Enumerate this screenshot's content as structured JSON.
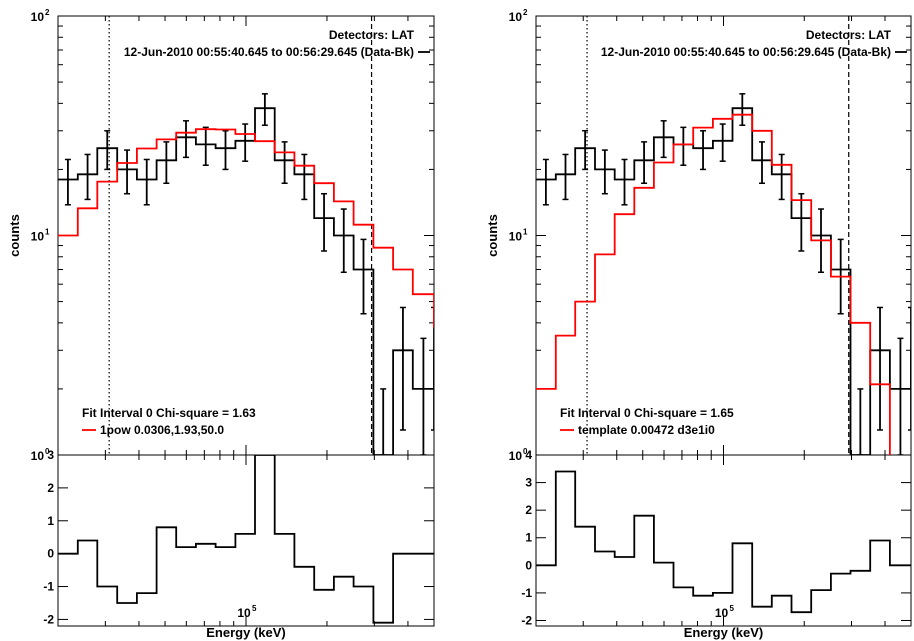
{
  "chart_data": [
    {
      "type": "line",
      "detectors": "Detectors: LAT",
      "interval": "12-Jun-2010 00:55:40.645 to 00:56:29.645 (Data-Bk)",
      "ylabel": "counts",
      "xlabel": "Energy (keV)",
      "x_tick": "10",
      "x_tick_exp": "5",
      "y_ticks": [
        {
          "base": "10",
          "exp": "2"
        },
        {
          "base": "10",
          "exp": "1"
        },
        {
          "base": "10",
          "exp": "0"
        }
      ],
      "fit_text": "Fit Interval 0   Chi-square = 1.63",
      "model_text": "1pow 0.0306,1.93,50.0",
      "colors": {
        "data": "#000000",
        "model": "#ff0000"
      },
      "log_x": true,
      "log_y": true,
      "xlim": [
        20000,
        500000
      ],
      "ylim": [
        1,
        100
      ],
      "x_tick_value": 100000,
      "dotted_line_x": 31000,
      "dashed_line_x": 293000,
      "edges": [
        20000,
        23700,
        28000,
        33200,
        39300,
        46500,
        55000,
        65100,
        77100,
        91300,
        108000,
        127900,
        151400,
        179300,
        212200,
        251300,
        297500,
        352200,
        417000,
        500000
      ],
      "data_counts": [
        18,
        19,
        25,
        20,
        18,
        22,
        28,
        26,
        25,
        27,
        38,
        22,
        19,
        12,
        10,
        7,
        1,
        3,
        2,
        3
      ],
      "data_errors": [
        4.2,
        4.4,
        5.0,
        4.5,
        4.2,
        4.7,
        5.3,
        5.1,
        5.0,
        5.2,
        6.2,
        4.7,
        4.4,
        3.5,
        3.2,
        2.6,
        1.0,
        1.7,
        1.4,
        1.7
      ],
      "model_counts": [
        10,
        13.3,
        17.6,
        21.4,
        24.9,
        27.4,
        29.4,
        30.5,
        30.4,
        29,
        26.9,
        23.9,
        20.8,
        17.3,
        14.3,
        11.2,
        8.8,
        7.0,
        5.4,
        4.2,
        3.8
      ],
      "resid_ylim": [
        -2.2,
        3.0
      ],
      "resid_ticks": [
        3,
        2,
        1,
        0,
        -1,
        -2
      ],
      "resid_values": [
        0.0,
        0.4,
        -1.0,
        -1.5,
        -1.2,
        0.8,
        0.2,
        0.3,
        0.2,
        0.6,
        3.0,
        0.6,
        -0.4,
        -1.1,
        -0.7,
        -1.0,
        -2.1,
        0.0,
        0.0
      ]
    },
    {
      "type": "line",
      "detectors": "Detectors: LAT",
      "interval": "12-Jun-2010 00:55:40.645 to 00:56:29.645 (Data-Bk)",
      "ylabel": "counts",
      "xlabel": "Energy (keV)",
      "x_tick": "10",
      "x_tick_exp": "5",
      "y_ticks": [
        {
          "base": "10",
          "exp": "2"
        },
        {
          "base": "10",
          "exp": "1"
        },
        {
          "base": "10",
          "exp": "0"
        }
      ],
      "fit_text": "Fit Interval 0   Chi-square = 1.65",
      "model_text": "template 0.00472  d3e1i0",
      "colors": {
        "data": "#000000",
        "model": "#ff0000"
      },
      "log_x": true,
      "log_y": true,
      "xlim": [
        20000,
        500000
      ],
      "ylim": [
        1,
        100
      ],
      "x_tick_value": 100000,
      "dotted_line_x": 31000,
      "dashed_line_x": 293000,
      "edges": [
        20000,
        23700,
        28000,
        33200,
        39300,
        46500,
        55000,
        65100,
        77100,
        91300,
        108000,
        127900,
        151400,
        179300,
        212200,
        251300,
        297500,
        352200,
        417000,
        500000
      ],
      "data_counts": [
        18,
        19,
        25,
        20,
        18,
        22,
        28,
        26,
        25,
        27,
        38,
        22,
        19,
        12,
        10,
        7,
        1,
        3,
        2,
        3
      ],
      "data_errors": [
        4.2,
        4.4,
        5.0,
        4.5,
        4.2,
        4.7,
        5.3,
        5.1,
        5.0,
        5.2,
        6.2,
        4.7,
        4.4,
        3.5,
        3.2,
        2.6,
        1.0,
        1.7,
        1.4,
        1.7
      ],
      "model_counts": [
        2.0,
        3.5,
        5.0,
        8.2,
        12.5,
        16.5,
        21.5,
        26,
        31,
        34,
        35.5,
        30,
        21,
        14.5,
        9.5,
        6.5,
        4.0,
        2.1
      ],
      "resid_ylim": [
        -2.2,
        4.0
      ],
      "resid_ticks": [
        4,
        3,
        2,
        1,
        0,
        -1,
        -2
      ],
      "resid_values": [
        0.0,
        3.4,
        1.4,
        0.5,
        0.3,
        1.8,
        0.1,
        -0.8,
        -1.1,
        -1.0,
        0.8,
        -1.5,
        -1.1,
        -1.7,
        -0.9,
        -0.3,
        -0.2,
        0.9,
        0.0
      ]
    }
  ]
}
